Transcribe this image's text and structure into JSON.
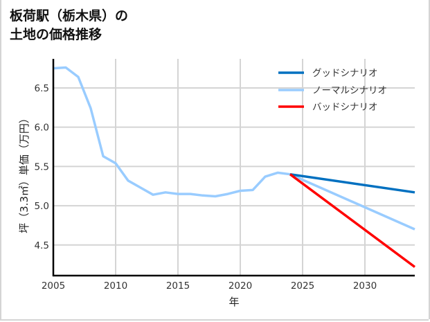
{
  "title_line1": "板荷駅（栃木県）の",
  "title_line2": "土地の価格推移",
  "chart_data": {
    "type": "line",
    "title": "板荷駅（栃木県）の土地の価格推移",
    "xlabel": "年",
    "ylabel": "坪（3.3㎡）単価（万円）",
    "xlim": [
      2005,
      2034
    ],
    "ylim": [
      4.11,
      6.87
    ],
    "x_ticks": [
      2005,
      2010,
      2015,
      2020,
      2025,
      2030
    ],
    "y_ticks": [
      4.5,
      5.0,
      5.5,
      6.0,
      6.5
    ],
    "grid": true,
    "legend_position": "upper right",
    "series": [
      {
        "name": "ノーマルシナリオ",
        "color": "#99ccff",
        "x": [
          2005,
          2006,
          2007,
          2008,
          2009,
          2010,
          2011,
          2012,
          2013,
          2014,
          2015,
          2016,
          2017,
          2018,
          2019,
          2020,
          2021,
          2022,
          2023,
          2024,
          2034
        ],
        "values": [
          6.75,
          6.76,
          6.64,
          6.24,
          5.63,
          5.54,
          5.32,
          5.23,
          5.14,
          5.17,
          5.15,
          5.15,
          5.13,
          5.12,
          5.15,
          5.19,
          5.2,
          5.37,
          5.42,
          5.4,
          4.7
        ]
      },
      {
        "name": "グッドシナリオ",
        "color": "#0070c0",
        "x": [
          2024,
          2034
        ],
        "values": [
          5.4,
          5.17
        ]
      },
      {
        "name": "バッドシナリオ",
        "color": "#ff0000",
        "x": [
          2024,
          2034
        ],
        "values": [
          5.4,
          4.22
        ]
      }
    ],
    "legend": [
      "グッドシナリオ",
      "ノーマルシナリオ",
      "バッドシナリオ"
    ]
  }
}
